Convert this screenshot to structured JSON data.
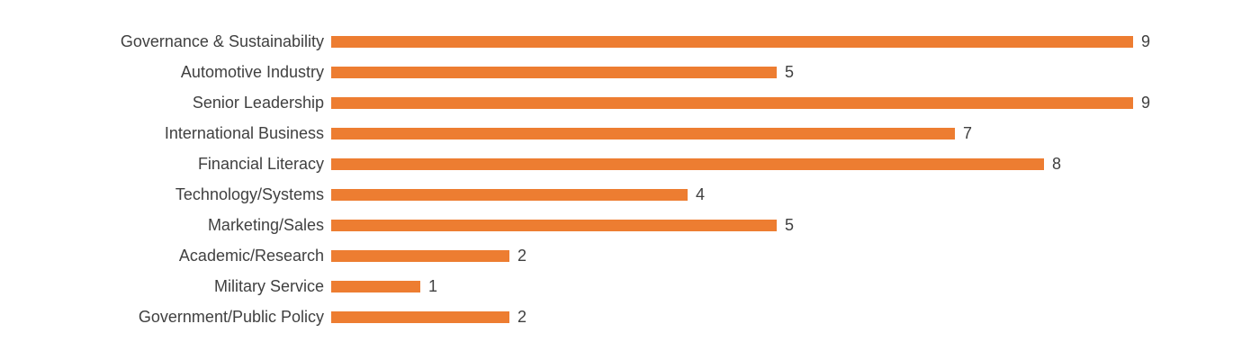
{
  "colors": {
    "bar": "#ED7D31",
    "label_text": "#404040",
    "background": "#ffffff"
  },
  "chart_data": {
    "type": "bar",
    "orientation": "horizontal",
    "title": "",
    "xlabel": "",
    "ylabel": "",
    "grid": false,
    "legend": false,
    "value_labels_shown": true,
    "xlim": [
      0,
      9
    ],
    "categories": [
      "Governance & Sustainability",
      "Automotive Industry",
      "Senior Leadership",
      "International Business",
      "Financial Literacy",
      "Technology/Systems",
      "Marketing/Sales",
      "Academic/Research",
      "Military Service",
      "Government/Public Policy"
    ],
    "values": [
      9,
      5,
      9,
      7,
      8,
      4,
      5,
      2,
      1,
      2
    ]
  }
}
